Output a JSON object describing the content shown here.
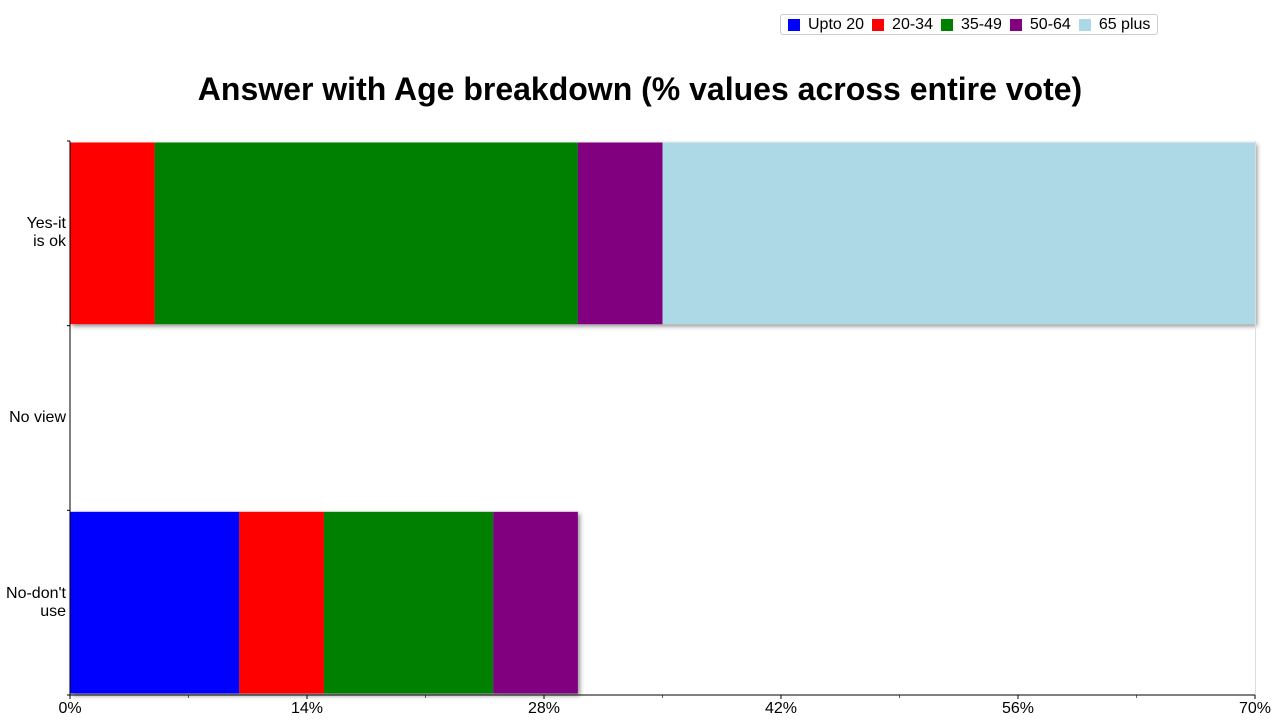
{
  "chart_data": {
    "type": "bar",
    "orientation": "horizontal",
    "stacked": true,
    "title": "Answer with Age breakdown (% values across entire vote)",
    "xlabel": "",
    "ylabel": "",
    "categories": [
      "Yes-it is ok",
      "No view",
      "No-don't use"
    ],
    "category_lines": [
      [
        "Yes-it",
        "is ok"
      ],
      [
        "No view"
      ],
      [
        "No-don't",
        "use"
      ]
    ],
    "xlim": [
      0,
      70
    ],
    "xticks": [
      0,
      14,
      28,
      42,
      56,
      70
    ],
    "xtick_labels": [
      "0%",
      "14%",
      "28%",
      "42%",
      "56%",
      "70%"
    ],
    "legend_position": "top-right",
    "grid": false,
    "series": [
      {
        "name": "Upto 20",
        "color": "#0000ff",
        "values": [
          0,
          0,
          10
        ]
      },
      {
        "name": "20-34",
        "color": "#ff0000",
        "values": [
          5,
          0,
          5
        ]
      },
      {
        "name": "35-49",
        "color": "#008000",
        "values": [
          25,
          0,
          10
        ]
      },
      {
        "name": "50-64",
        "color": "#800080",
        "values": [
          5,
          0,
          5
        ]
      },
      {
        "name": "65 plus",
        "color": "#add8e6",
        "values": [
          35,
          0,
          0
        ]
      }
    ]
  }
}
